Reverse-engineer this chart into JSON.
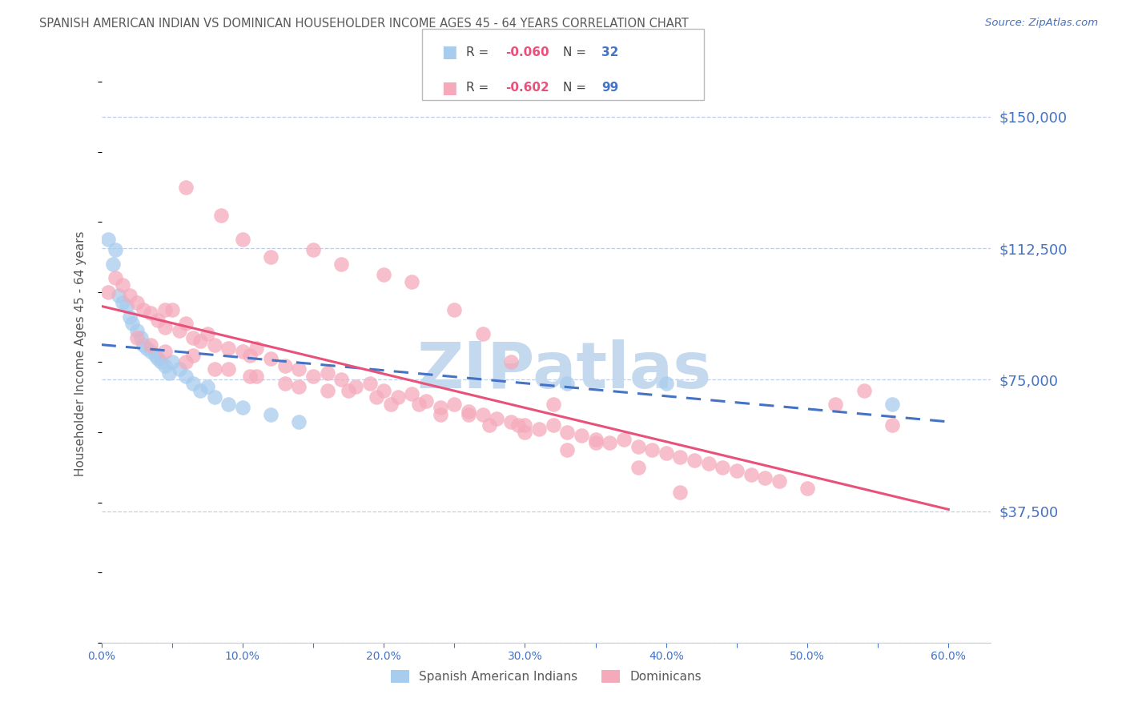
{
  "title": "SPANISH AMERICAN INDIAN VS DOMINICAN HOUSEHOLDER INCOME AGES 45 - 64 YEARS CORRELATION CHART",
  "source": "Source: ZipAtlas.com",
  "ylabel": "Householder Income Ages 45 - 64 years",
  "xlim": [
    0.0,
    63.0
  ],
  "ylim": [
    0,
    165000
  ],
  "yticks": [
    0,
    37500,
    75000,
    112500,
    150000
  ],
  "ytick_labels": [
    "",
    "$37,500",
    "$75,000",
    "$112,500",
    "$150,000"
  ],
  "xtick_labels": [
    "0.0%",
    "",
    "10.0%",
    "",
    "20.0%",
    "",
    "30.0%",
    "",
    "40.0%",
    "",
    "50.0%",
    "",
    "60.0%"
  ],
  "xticks": [
    0,
    5,
    10,
    15,
    20,
    25,
    30,
    35,
    40,
    45,
    50,
    55,
    60
  ],
  "legend_blue_r": "-0.060",
  "legend_blue_n": "32",
  "legend_pink_r": "-0.602",
  "legend_pink_n": "99",
  "blue_color": "#A8CCEE",
  "pink_color": "#F5AABB",
  "blue_line_color": "#4472C4",
  "pink_line_color": "#E8527A",
  "axis_label_color": "#4472C4",
  "title_color": "#595959",
  "watermark_color": "#C5D9EE",
  "grid_color": "#BDD0E8",
  "blue_points_x": [
    0.5,
    0.8,
    1.0,
    1.2,
    1.5,
    1.8,
    2.0,
    2.2,
    2.5,
    2.8,
    3.0,
    3.2,
    3.5,
    3.8,
    4.0,
    4.2,
    4.5,
    4.8,
    5.0,
    5.5,
    6.0,
    6.5,
    7.0,
    7.5,
    8.0,
    9.0,
    10.0,
    12.0,
    14.0,
    33.0,
    40.0,
    56.0
  ],
  "blue_points_y": [
    115000,
    108000,
    112000,
    99000,
    97000,
    96000,
    93000,
    91000,
    89000,
    87000,
    85000,
    84000,
    83000,
    82000,
    81000,
    80000,
    79000,
    77000,
    80000,
    78000,
    76000,
    74000,
    72000,
    73000,
    70000,
    68000,
    67000,
    65000,
    63000,
    74000,
    74000,
    68000
  ],
  "pink_points_x": [
    0.5,
    1.0,
    1.5,
    2.0,
    2.5,
    3.0,
    3.5,
    4.0,
    4.5,
    5.0,
    5.5,
    6.0,
    6.5,
    7.0,
    7.5,
    8.0,
    9.0,
    10.0,
    10.5,
    11.0,
    12.0,
    13.0,
    14.0,
    15.0,
    16.0,
    17.0,
    18.0,
    19.0,
    20.0,
    21.0,
    22.0,
    23.0,
    24.0,
    25.0,
    26.0,
    27.0,
    28.0,
    29.0,
    30.0,
    31.0,
    32.0,
    33.0,
    34.0,
    35.0,
    36.0,
    37.0,
    38.0,
    39.0,
    40.0,
    41.0,
    42.0,
    43.0,
    44.0,
    45.0,
    46.0,
    47.0,
    48.0,
    50.0,
    52.0,
    54.0,
    56.0,
    6.0,
    8.5,
    10.0,
    12.0,
    15.0,
    17.0,
    20.0,
    22.0,
    25.0,
    27.0,
    29.0,
    32.0,
    35.0,
    38.0,
    41.0,
    4.5,
    6.5,
    9.0,
    11.0,
    14.0,
    17.5,
    20.5,
    24.0,
    27.5,
    30.0,
    33.0,
    2.5,
    3.5,
    4.5,
    6.0,
    8.0,
    10.5,
    13.0,
    16.0,
    19.5,
    22.5,
    26.0,
    29.5
  ],
  "pink_points_y": [
    100000,
    104000,
    102000,
    99000,
    97000,
    95000,
    94000,
    92000,
    90000,
    95000,
    89000,
    91000,
    87000,
    86000,
    88000,
    85000,
    84000,
    83000,
    82000,
    84000,
    81000,
    79000,
    78000,
    76000,
    77000,
    75000,
    73000,
    74000,
    72000,
    70000,
    71000,
    69000,
    67000,
    68000,
    66000,
    65000,
    64000,
    63000,
    62000,
    61000,
    62000,
    60000,
    59000,
    58000,
    57000,
    58000,
    56000,
    55000,
    54000,
    53000,
    52000,
    51000,
    50000,
    49000,
    48000,
    47000,
    46000,
    44000,
    68000,
    72000,
    62000,
    130000,
    122000,
    115000,
    110000,
    112000,
    108000,
    105000,
    103000,
    95000,
    88000,
    80000,
    68000,
    57000,
    50000,
    43000,
    95000,
    82000,
    78000,
    76000,
    73000,
    72000,
    68000,
    65000,
    62000,
    60000,
    55000,
    87000,
    85000,
    83000,
    80000,
    78000,
    76000,
    74000,
    72000,
    70000,
    68000,
    65000,
    62000
  ],
  "blue_trend_x0": 0,
  "blue_trend_y0": 85000,
  "blue_trend_x1": 60,
  "blue_trend_y1": 63000,
  "pink_trend_x0": 0,
  "pink_trend_y0": 96000,
  "pink_trend_x1": 60,
  "pink_trend_y1": 38000
}
